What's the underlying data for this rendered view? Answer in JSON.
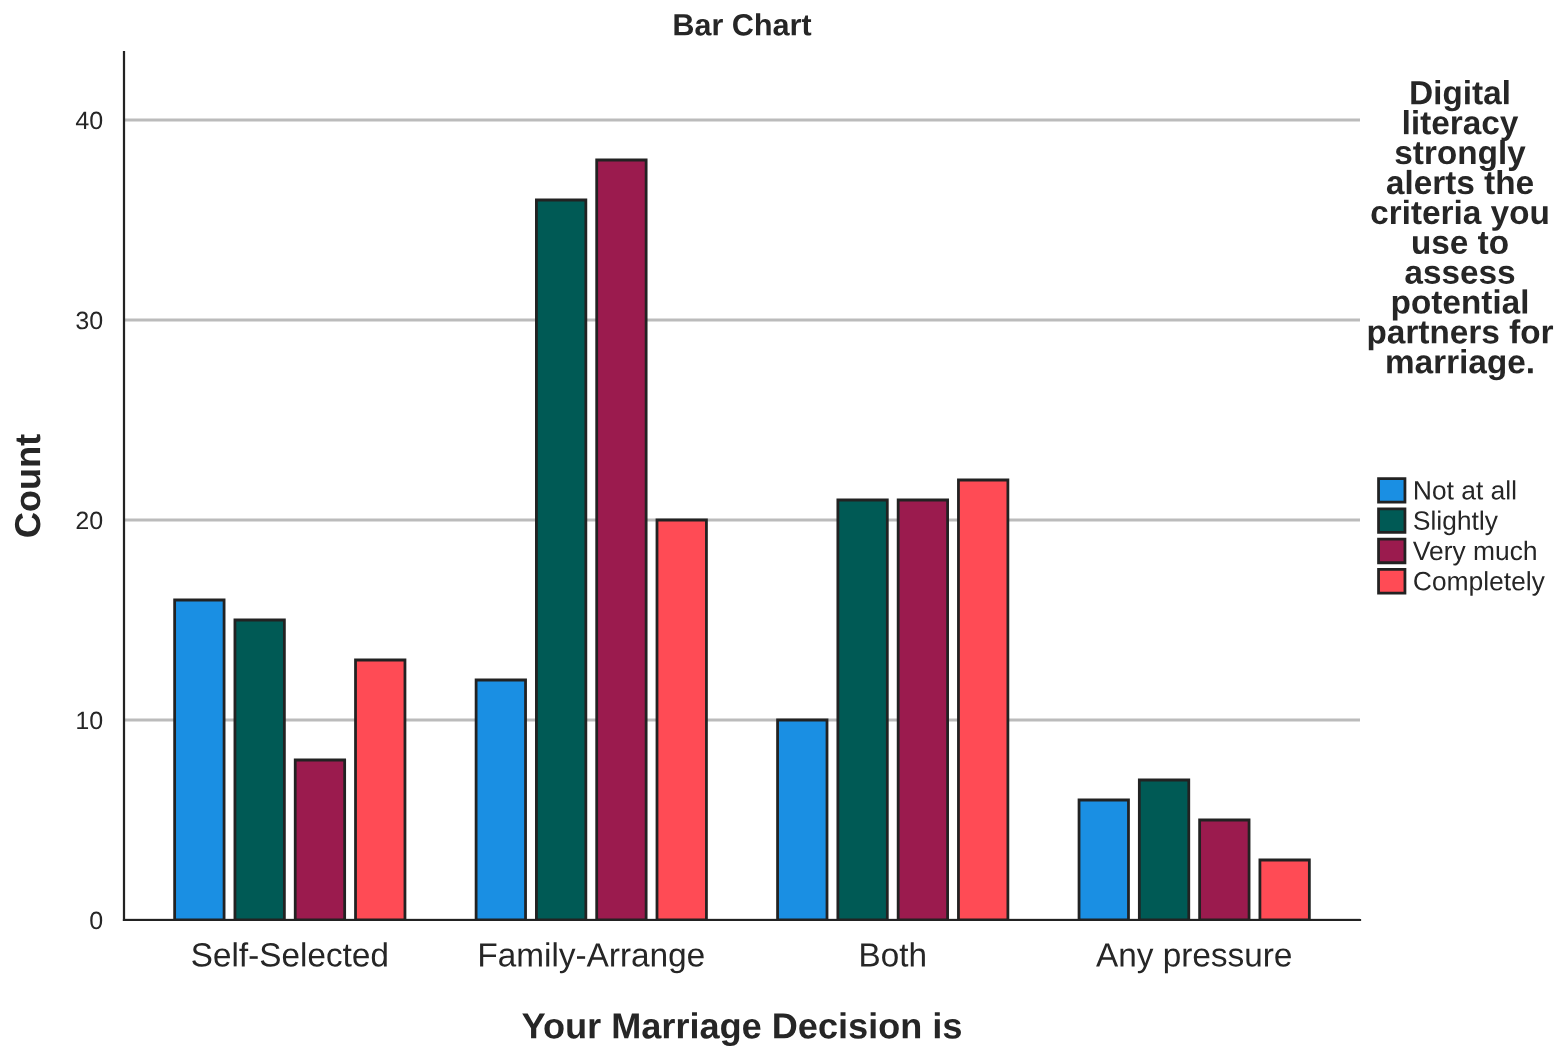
{
  "chart_data": {
    "type": "bar",
    "title": "Bar Chart",
    "xlabel": "Your Marriage Decision is",
    "ylabel": "Count",
    "legend_title": "Digital literacy strongly alerts the criteria you use to assess potential partners for marriage.",
    "categories": [
      "Self-Selected",
      "Family-Arrange",
      "Both",
      "Any pressure"
    ],
    "series": [
      {
        "name": "Not at all",
        "color": "#1a8fe3",
        "values": [
          16,
          12,
          10,
          6
        ]
      },
      {
        "name": "Slightly",
        "color": "#005a55",
        "values": [
          15,
          36,
          21,
          7
        ]
      },
      {
        "name": "Very much",
        "color": "#9b1b4e",
        "values": [
          8,
          38,
          21,
          5
        ]
      },
      {
        "name": "Completely",
        "color": "#ff4b55",
        "values": [
          13,
          20,
          22,
          3
        ]
      }
    ],
    "ylim": [
      0,
      43.4
    ],
    "yticks": [
      0,
      10,
      20,
      30,
      40
    ],
    "grid": "y",
    "legend": "right"
  }
}
